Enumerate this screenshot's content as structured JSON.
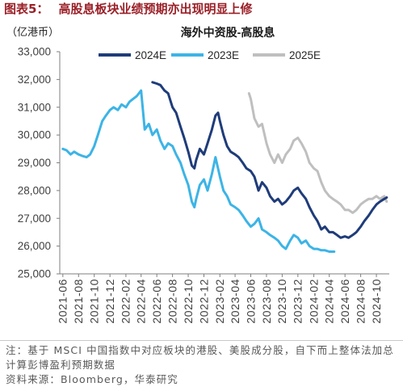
{
  "figure": {
    "label": "图表5：",
    "title": "高股息板块业绩预期亦出现明显上修"
  },
  "chart_data": {
    "type": "line",
    "title": "海外中资股-高股息",
    "ylabel": "（亿港币）",
    "ylim": [
      25000,
      33000
    ],
    "yticks": [
      25000,
      26000,
      27000,
      28000,
      29000,
      30000,
      31000,
      32000,
      33000
    ],
    "ytick_labels": [
      "25,000",
      "26,000",
      "27,000",
      "28,000",
      "29,000",
      "30,000",
      "31,000",
      "32,000",
      "33,000"
    ],
    "xlim": [
      "2021-05-20",
      "2024-11-20"
    ],
    "xtick_labels": [
      "2021-06",
      "2021-08",
      "2021-10",
      "2021-12",
      "2022-02",
      "2022-04",
      "2022-06",
      "2022-08",
      "2022-10",
      "2022-12",
      "2023-02",
      "2023-04",
      "2023-06",
      "2023-08",
      "2023-10",
      "2023-12",
      "2024-02",
      "2024-04",
      "2024-06",
      "2024-08",
      "2024-10"
    ],
    "grid": false,
    "legend": {
      "position": "top"
    },
    "series": [
      {
        "name": "2024E",
        "color": "#1f3c7a",
        "points": [
          [
            "2022-05-15",
            31900
          ],
          [
            "2022-06-01",
            31850
          ],
          [
            "2022-06-15",
            31800
          ],
          [
            "2022-07-01",
            31600
          ],
          [
            "2022-07-15",
            31500
          ],
          [
            "2022-08-01",
            31000
          ],
          [
            "2022-08-15",
            30800
          ],
          [
            "2022-09-01",
            30300
          ],
          [
            "2022-09-15",
            29900
          ],
          [
            "2022-10-01",
            29400
          ],
          [
            "2022-10-15",
            28900
          ],
          [
            "2022-10-25",
            28800
          ],
          [
            "2022-11-01",
            29100
          ],
          [
            "2022-11-15",
            29500
          ],
          [
            "2022-12-01",
            29300
          ],
          [
            "2022-12-15",
            29700
          ],
          [
            "2023-01-01",
            30200
          ],
          [
            "2023-01-15",
            30700
          ],
          [
            "2023-01-25",
            30800
          ],
          [
            "2023-02-01",
            30500
          ],
          [
            "2023-02-15",
            30000
          ],
          [
            "2023-03-01",
            29600
          ],
          [
            "2023-03-15",
            29400
          ],
          [
            "2023-04-01",
            29300
          ],
          [
            "2023-04-15",
            29200
          ],
          [
            "2023-05-01",
            29000
          ],
          [
            "2023-05-15",
            28800
          ],
          [
            "2023-06-01",
            28700
          ],
          [
            "2023-06-15",
            28500
          ],
          [
            "2023-07-01",
            28000
          ],
          [
            "2023-07-15",
            28300
          ],
          [
            "2023-08-01",
            28100
          ],
          [
            "2023-08-15",
            27800
          ],
          [
            "2023-09-01",
            27600
          ],
          [
            "2023-09-15",
            27700
          ],
          [
            "2023-10-01",
            27500
          ],
          [
            "2023-10-15",
            27600
          ],
          [
            "2023-11-01",
            27800
          ],
          [
            "2023-11-15",
            28000
          ],
          [
            "2023-12-01",
            28100
          ],
          [
            "2023-12-15",
            27900
          ],
          [
            "2024-01-01",
            27700
          ],
          [
            "2024-01-15",
            27400
          ],
          [
            "2024-02-01",
            27100
          ],
          [
            "2024-02-15",
            26900
          ],
          [
            "2024-03-01",
            26600
          ],
          [
            "2024-03-15",
            26700
          ],
          [
            "2024-04-01",
            26500
          ],
          [
            "2024-04-15",
            26500
          ],
          [
            "2024-05-01",
            26400
          ],
          [
            "2024-05-15",
            26300
          ],
          [
            "2024-06-01",
            26350
          ],
          [
            "2024-06-15",
            26300
          ],
          [
            "2024-07-01",
            26400
          ],
          [
            "2024-07-15",
            26500
          ],
          [
            "2024-08-01",
            26700
          ],
          [
            "2024-08-15",
            26900
          ],
          [
            "2024-09-01",
            27100
          ],
          [
            "2024-09-15",
            27300
          ],
          [
            "2024-10-01",
            27500
          ],
          [
            "2024-10-15",
            27600
          ],
          [
            "2024-11-01",
            27700
          ],
          [
            "2024-11-10",
            27750
          ]
        ]
      },
      {
        "name": "2023E",
        "color": "#3cb4e6",
        "points": [
          [
            "2021-06-01",
            29500
          ],
          [
            "2021-06-15",
            29450
          ],
          [
            "2021-07-01",
            29300
          ],
          [
            "2021-07-15",
            29400
          ],
          [
            "2021-08-01",
            29300
          ],
          [
            "2021-08-15",
            29250
          ],
          [
            "2021-09-01",
            29200
          ],
          [
            "2021-09-15",
            29300
          ],
          [
            "2021-10-01",
            29600
          ],
          [
            "2021-10-15",
            30000
          ],
          [
            "2021-11-01",
            30500
          ],
          [
            "2021-11-15",
            30700
          ],
          [
            "2021-12-01",
            30900
          ],
          [
            "2021-12-15",
            31000
          ],
          [
            "2022-01-01",
            30900
          ],
          [
            "2022-01-15",
            31100
          ],
          [
            "2022-02-01",
            31000
          ],
          [
            "2022-02-15",
            31200
          ],
          [
            "2022-03-01",
            31300
          ],
          [
            "2022-03-15",
            31400
          ],
          [
            "2022-04-01",
            31600
          ],
          [
            "2022-04-15",
            30200
          ],
          [
            "2022-05-01",
            30400
          ],
          [
            "2022-05-15",
            30000
          ],
          [
            "2022-06-01",
            30200
          ],
          [
            "2022-06-15",
            29800
          ],
          [
            "2022-07-01",
            29500
          ],
          [
            "2022-07-15",
            29700
          ],
          [
            "2022-08-01",
            29600
          ],
          [
            "2022-08-15",
            29300
          ],
          [
            "2022-09-01",
            29000
          ],
          [
            "2022-09-15",
            28600
          ],
          [
            "2022-10-01",
            28200
          ],
          [
            "2022-10-15",
            27600
          ],
          [
            "2022-10-25",
            27400
          ],
          [
            "2022-11-01",
            27700
          ],
          [
            "2022-11-15",
            28200
          ],
          [
            "2022-12-01",
            28400
          ],
          [
            "2022-12-15",
            28000
          ],
          [
            "2023-01-01",
            28600
          ],
          [
            "2023-01-15",
            29200
          ],
          [
            "2023-02-01",
            28500
          ],
          [
            "2023-02-15",
            28000
          ],
          [
            "2023-03-01",
            27800
          ],
          [
            "2023-03-15",
            27500
          ],
          [
            "2023-04-01",
            27400
          ],
          [
            "2023-04-15",
            27300
          ],
          [
            "2023-05-01",
            27100
          ],
          [
            "2023-05-15",
            26900
          ],
          [
            "2023-06-01",
            26700
          ],
          [
            "2023-06-15",
            26800
          ],
          [
            "2023-07-01",
            27000
          ],
          [
            "2023-07-15",
            26600
          ],
          [
            "2023-08-01",
            26500
          ],
          [
            "2023-08-15",
            26400
          ],
          [
            "2023-09-01",
            26300
          ],
          [
            "2023-09-15",
            26200
          ],
          [
            "2023-10-01",
            26000
          ],
          [
            "2023-10-15",
            25900
          ],
          [
            "2023-11-01",
            26200
          ],
          [
            "2023-11-15",
            26400
          ],
          [
            "2023-12-01",
            26300
          ],
          [
            "2023-12-15",
            26100
          ],
          [
            "2024-01-01",
            26200
          ],
          [
            "2024-01-15",
            26000
          ],
          [
            "2024-02-01",
            25900
          ],
          [
            "2024-02-15",
            25900
          ],
          [
            "2024-03-01",
            25850
          ],
          [
            "2024-03-15",
            25850
          ],
          [
            "2024-04-01",
            25800
          ],
          [
            "2024-04-20",
            25800
          ]
        ]
      },
      {
        "name": "2025E",
        "color": "#bfbfbf",
        "points": [
          [
            "2023-05-25",
            31500
          ],
          [
            "2023-06-01",
            31300
          ],
          [
            "2023-06-15",
            30600
          ],
          [
            "2023-07-01",
            30300
          ],
          [
            "2023-07-15",
            30400
          ],
          [
            "2023-08-01",
            29700
          ],
          [
            "2023-08-15",
            29300
          ],
          [
            "2023-09-01",
            29000
          ],
          [
            "2023-09-15",
            29300
          ],
          [
            "2023-10-01",
            29000
          ],
          [
            "2023-10-15",
            29300
          ],
          [
            "2023-11-01",
            29500
          ],
          [
            "2023-11-15",
            29800
          ],
          [
            "2023-12-01",
            29900
          ],
          [
            "2023-12-15",
            29700
          ],
          [
            "2024-01-01",
            29400
          ],
          [
            "2024-01-15",
            29000
          ],
          [
            "2024-02-01",
            28800
          ],
          [
            "2024-02-15",
            28700
          ],
          [
            "2024-03-01",
            28300
          ],
          [
            "2024-03-15",
            28000
          ],
          [
            "2024-04-01",
            27800
          ],
          [
            "2024-04-15",
            27700
          ],
          [
            "2024-05-01",
            27600
          ],
          [
            "2024-05-15",
            27500
          ],
          [
            "2024-06-01",
            27300
          ],
          [
            "2024-06-15",
            27300
          ],
          [
            "2024-07-01",
            27200
          ],
          [
            "2024-07-15",
            27300
          ],
          [
            "2024-08-01",
            27500
          ],
          [
            "2024-08-15",
            27600
          ],
          [
            "2024-09-01",
            27700
          ],
          [
            "2024-09-15",
            27700
          ],
          [
            "2024-10-01",
            27800
          ],
          [
            "2024-10-15",
            27700
          ],
          [
            "2024-11-01",
            27800
          ],
          [
            "2024-11-10",
            27600
          ]
        ]
      }
    ]
  },
  "notes": {
    "note_lines": [
      "注：基于 MSCI 中国指数中对应板块的港股、美股成分股，自下而上整体法加总",
      "计算彭博盈利预期数据"
    ],
    "source": "资料来源：Bloomberg，华泰研究"
  }
}
